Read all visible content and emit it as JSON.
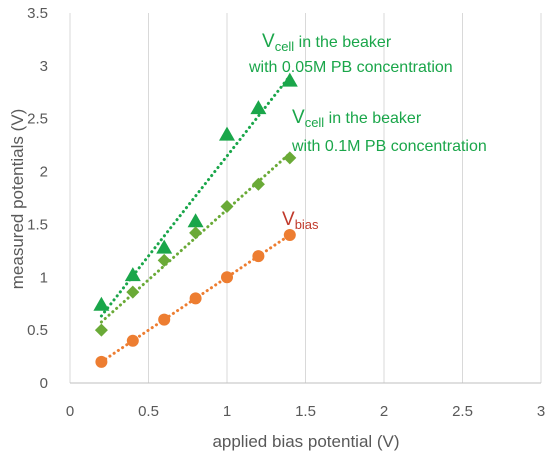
{
  "chart_data": {
    "type": "scatter",
    "xlabel": "applied bias potential (V)",
    "ylabel": "measured potentials (V)",
    "xlim": [
      0,
      3
    ],
    "ylim": [
      0,
      3.5
    ],
    "xticks": [
      "0",
      "0.5",
      "1",
      "1.5",
      "2",
      "2.5",
      "3"
    ],
    "yticks": [
      "0",
      "0.5",
      "1",
      "1.5",
      "2",
      "2.5",
      "3",
      "3.5"
    ],
    "grid": "vertical",
    "series": [
      {
        "key": "vcell_005",
        "marker": "triangle",
        "color": "#1aa64a",
        "trendline": "dotted-linear",
        "x": [
          0.2,
          0.4,
          0.6,
          0.8,
          1.0,
          1.2,
          1.4
        ],
        "y": [
          0.74,
          1.02,
          1.28,
          1.53,
          2.35,
          2.6,
          2.86
        ]
      },
      {
        "key": "vcell_01",
        "marker": "diamond",
        "color": "#6aaa37",
        "trendline": "dotted-linear",
        "x": [
          0.2,
          0.4,
          0.6,
          0.8,
          1.0,
          1.2,
          1.4
        ],
        "y": [
          0.5,
          0.86,
          1.16,
          1.42,
          1.67,
          1.88,
          2.13
        ]
      },
      {
        "key": "vbias",
        "marker": "circle",
        "color": "#ed7d31",
        "trendline": "dotted-linear",
        "x": [
          0.2,
          0.4,
          0.6,
          0.8,
          1.0,
          1.2,
          1.4
        ],
        "y": [
          0.2,
          0.4,
          0.6,
          0.8,
          1.0,
          1.2,
          1.4
        ]
      }
    ],
    "annotations": [
      {
        "key": "vcell_005",
        "color": "#1aa64a",
        "main": "V",
        "sub": "cell",
        "line1_rest": " in the beaker",
        "line2": "with 0.05M PB concentration"
      },
      {
        "key": "vcell_01",
        "color": "#1aa64a",
        "main": "V",
        "sub": "cell",
        "line1_rest": " in the beaker",
        "line2": "with 0.1M PB concentration"
      },
      {
        "key": "vbias",
        "color": "#c0392b",
        "main": "V",
        "sub": "bias"
      }
    ]
  }
}
